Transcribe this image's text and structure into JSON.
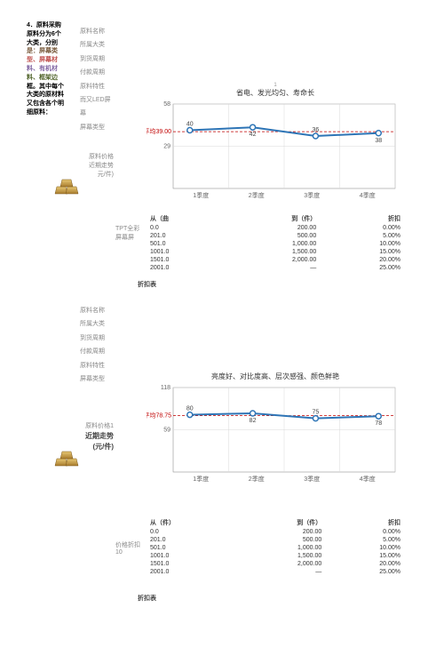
{
  "sideText": {
    "line1": "4．原料采购",
    "line2": "原料分为6个",
    "line3": "大类，分别",
    "line4": "是：屏幕类",
    "line5": "型、屏幕材",
    "line6": "料、有机材",
    "line7": "料、框架边",
    "line8": "框。其中每个",
    "line9": "大类的原材料",
    "line10": "又包含各个明",
    "line11": "细原料："
  },
  "matLabels1": [
    "原料名称",
    "所属大类",
    "到货周期",
    "付款周期",
    "原料特性",
    "而又LED屏",
    "幕",
    "屏幕类型"
  ],
  "priceLabel1a": "原料价格",
  "priceLabel1b": "近期走势",
  "priceLabel1c": "元/件)",
  "chart1": {
    "titleSmall": "1",
    "title": "省电、发光均匀、寿命长",
    "yMax": 58,
    "yMid": 29,
    "avgLabel": "平均39.00",
    "avg": 39,
    "categories": [
      "1季度",
      "2季度",
      "3季度",
      "4季度"
    ],
    "values": [
      40,
      42,
      36,
      38
    ],
    "lineColor": "#2e75b6",
    "avgColor": "#c00000",
    "markerFill": "#ffffff",
    "gridColor": "#d9d9d9",
    "axisColor": "#7f7f7f",
    "background": "#ffffff"
  },
  "table1": {
    "headers": [
      "从（曲",
      "到（件）",
      "折扣"
    ],
    "sideLabel": "TPT全彩屏幕屏",
    "rows": [
      [
        "0.0",
        "200.00",
        "0.00%"
      ],
      [
        "201.0",
        "500.00",
        "5.00%"
      ],
      [
        "501.0",
        "1,000.00",
        "10.00%"
      ],
      [
        "1001.0",
        "1,500.00",
        "15.00%"
      ],
      [
        "1501.0",
        "2,000.00",
        "20.00%"
      ],
      [
        "2001.0",
        "—",
        "25.00%"
      ]
    ],
    "discLabel": "折扣表"
  },
  "matLabels2": [
    "原料名称",
    "所属大类",
    "到货周期",
    "付款周期",
    "原料特性",
    "屏幕类型"
  ],
  "priceLabel2a": "原料价格1",
  "priceLabel2b": "近期走势",
  "priceLabel2c": "(元/件)",
  "chart2": {
    "title": "亮度好、对比度高、层次感强、颜色鲜艳",
    "yMax": 118,
    "yMid": 59,
    "avgLabel": "平均78.75",
    "avg": 78.75,
    "categories": [
      "1季度",
      "2季度",
      "3季度",
      "4季度"
    ],
    "values": [
      80,
      82,
      75,
      78
    ],
    "lineColor": "#2e75b6",
    "avgColor": "#c00000",
    "markerFill": "#ffffff",
    "gridColor": "#d9d9d9",
    "axisColor": "#7f7f7f",
    "background": "#ffffff"
  },
  "table2": {
    "headers": [
      "从（件）",
      "到（件）",
      "折扣"
    ],
    "sideLabel": "价格折扣10",
    "rows": [
      [
        "0.0",
        "200.00",
        "0.00%"
      ],
      [
        "201.0",
        "500.00",
        "5.00%"
      ],
      [
        "501.0",
        "1,000.00",
        "10.00%"
      ],
      [
        "1001.0",
        "1,500.00",
        "15.00%"
      ],
      [
        "1501.0",
        "2,000.00",
        "20.00%"
      ],
      [
        "2001.0",
        "—",
        "25.00%"
      ]
    ],
    "discLabel": "折扣表"
  }
}
